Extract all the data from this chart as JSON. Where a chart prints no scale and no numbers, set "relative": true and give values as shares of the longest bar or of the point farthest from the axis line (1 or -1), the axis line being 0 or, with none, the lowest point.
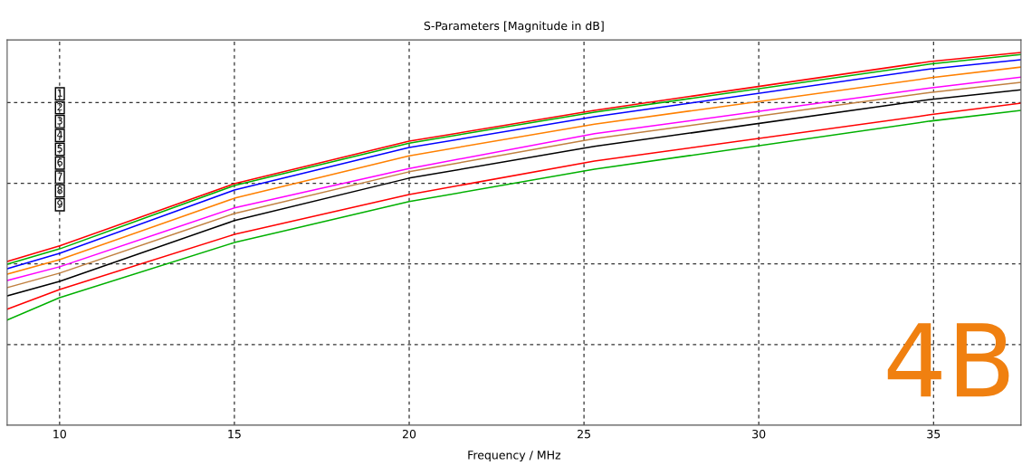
{
  "chart_data": {
    "type": "line",
    "title": "S-Parameters [Magnitude in dB]",
    "xlabel": "Frequency / MHz",
    "relative": true,
    "grid": true,
    "legend": false,
    "x": [
      8.5,
      10,
      15,
      20,
      25.3,
      34.9,
      37.5
    ],
    "xlim": [
      8.5,
      37.5
    ],
    "xticks": [
      10,
      15,
      20,
      25,
      30,
      35
    ],
    "series": [
      {
        "color": "#ff0000",
        "values": [
          0.439,
          0.481,
          0.648,
          0.762,
          0.845,
          0.976,
          1.0
        ]
      },
      {
        "color": "#00b000",
        "values": [
          0.432,
          0.473,
          0.643,
          0.757,
          0.84,
          0.969,
          0.995
        ]
      },
      {
        "color": "#0000ff",
        "values": [
          0.42,
          0.461,
          0.631,
          0.745,
          0.828,
          0.956,
          0.981
        ]
      },
      {
        "color": "#ff8000",
        "values": [
          0.405,
          0.444,
          0.609,
          0.723,
          0.808,
          0.932,
          0.961
        ]
      },
      {
        "color": "#ff00ff",
        "values": [
          0.388,
          0.425,
          0.583,
          0.689,
          0.782,
          0.905,
          0.934
        ]
      },
      {
        "color": "#c08040",
        "values": [
          0.369,
          0.408,
          0.568,
          0.68,
          0.769,
          0.893,
          0.92
        ]
      },
      {
        "color": "#000000",
        "values": [
          0.347,
          0.386,
          0.549,
          0.663,
          0.748,
          0.874,
          0.9
        ]
      },
      {
        "color": "#ff0000",
        "values": [
          0.311,
          0.364,
          0.512,
          0.619,
          0.709,
          0.833,
          0.864
        ]
      },
      {
        "color": "#00b000",
        "values": [
          0.282,
          0.342,
          0.49,
          0.6,
          0.687,
          0.816,
          0.845
        ]
      }
    ],
    "annotations": [
      "1",
      "2",
      "3",
      "4",
      "5",
      "6",
      "7",
      "8",
      "9",
      "4B"
    ]
  }
}
